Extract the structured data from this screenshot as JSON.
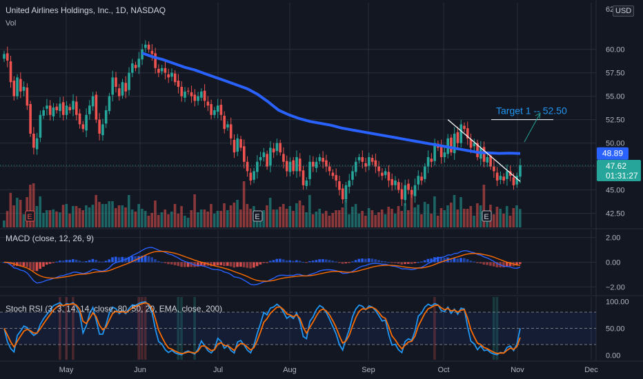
{
  "header": {
    "title": "United Airlines Holdings, Inc., 1D, NASDAQ",
    "vol_label": "Vol",
    "currency": "USD",
    "top_tick_partial": "62"
  },
  "annotation": {
    "target_text": "Target 1 -- 52.50"
  },
  "price_tags": {
    "ema": "48.89",
    "last": "47.62",
    "countdown": "01:31:27"
  },
  "macd": {
    "title": "MACD (close, 12, 26, 9)",
    "ticks": [
      "2.00",
      "0.00",
      "−2.00"
    ]
  },
  "stoch": {
    "title": "Stoch RSI (3, 3, 14, 14, close, 80, 50, 20, EMA, close, 200)",
    "ticks": [
      "100.00",
      "50.00",
      "0.00"
    ]
  },
  "colors": {
    "up": "#26a69a",
    "down": "#ef5350",
    "ema": "#2962ff",
    "macd_line": "#2962ff",
    "signal_line": "#ff6d00",
    "stoch_k": "#2196f3",
    "stoch_d": "#ff6d00",
    "grid": "#2a2e39"
  },
  "chart_data": {
    "type": "candlestick",
    "price_axis_ticks": [
      60.0,
      57.5,
      55.0,
      52.5,
      50.0,
      47.5,
      45.0,
      42.5
    ],
    "price_axis_labels": [
      "60.00",
      "57.50",
      "55.00",
      "52.50",
      "50.00",
      "45.00",
      "42.50"
    ],
    "x_labels": [
      "May",
      "Jun",
      "Jul",
      "Aug",
      "Sep",
      "Oct",
      "Nov",
      "Dec"
    ],
    "ylim": [
      41,
      63.5
    ],
    "earnings_markers": [
      "E",
      "E",
      "E"
    ],
    "closes": [
      59.5,
      58.8,
      56.5,
      55.0,
      57.0,
      55.5,
      56.0,
      54.0,
      51.0,
      49.5,
      50.5,
      53.0,
      53.5,
      54.0,
      53.0,
      53.8,
      53.5,
      54.2,
      53.0,
      54.0,
      53.5,
      54.5,
      53.0,
      52.0,
      51.5,
      53.0,
      54.0,
      55.0,
      52.5,
      51.0,
      52.0,
      53.5,
      55.0,
      57.0,
      56.0,
      55.0,
      56.5,
      55.5,
      57.5,
      58.5,
      58.0,
      59.0,
      60.0,
      60.5,
      60.0,
      59.5,
      58.0,
      57.5,
      58.0,
      57.5,
      57.0,
      57.5,
      56.5,
      56.0,
      55.0,
      55.5,
      55.5,
      55.0,
      54.5,
      55.0,
      55.5,
      54.5,
      54.0,
      53.0,
      53.5,
      54.0,
      53.0,
      51.5,
      52.0,
      50.5,
      49.0,
      50.5,
      49.5,
      48.0,
      47.0,
      46.0,
      47.0,
      48.0,
      48.5,
      49.0,
      47.5,
      49.5,
      49.0,
      50.0,
      49.0,
      48.0,
      47.0,
      48.0,
      47.0,
      48.5,
      47.0,
      45.5,
      46.0,
      48.0,
      47.5,
      48.0,
      48.5,
      48.0,
      47.5,
      47.0,
      46.5,
      46.0,
      45.0,
      44.0,
      45.5,
      46.0,
      47.0,
      48.0,
      48.5,
      48.0,
      47.5,
      48.5,
      48.0,
      47.5,
      47.0,
      46.5,
      47.0,
      46.0,
      45.5,
      46.0,
      45.0,
      44.0,
      45.5,
      45.0,
      44.5,
      45.5,
      46.5,
      46.0,
      47.5,
      48.5,
      48.0,
      50.0,
      49.5,
      48.5,
      49.0,
      50.5,
      49.0,
      51.0,
      50.0,
      52.0,
      51.5,
      50.5,
      49.5,
      50.0,
      48.5,
      49.5,
      48.0,
      48.5,
      47.5,
      47.0,
      46.0,
      46.5,
      46.0,
      47.0,
      46.5,
      45.5,
      46.5,
      47.62
    ],
    "ema_200": [
      59.6,
      59.2,
      58.9,
      58.5,
      58.1,
      57.8,
      57.4,
      57.0,
      56.6,
      56.2,
      55.8,
      55.2,
      54.4,
      53.5,
      53.0,
      52.6,
      52.3,
      52.1,
      51.9,
      51.6,
      51.4,
      51.2,
      51.0,
      50.8,
      50.6,
      50.4,
      50.2,
      50.0,
      49.8,
      49.6,
      49.4,
      49.2,
      49.0,
      48.95,
      48.9,
      48.92,
      48.89
    ],
    "ema_200_start_index": 42,
    "target": 52.5,
    "trendline_start": 52.5,
    "trendline_end": 45.9,
    "macd_ylim": [
      -2.6,
      2.6
    ],
    "stoch_ylim": [
      -8,
      108
    ],
    "stoch_levels": [
      80,
      50,
      20
    ]
  }
}
